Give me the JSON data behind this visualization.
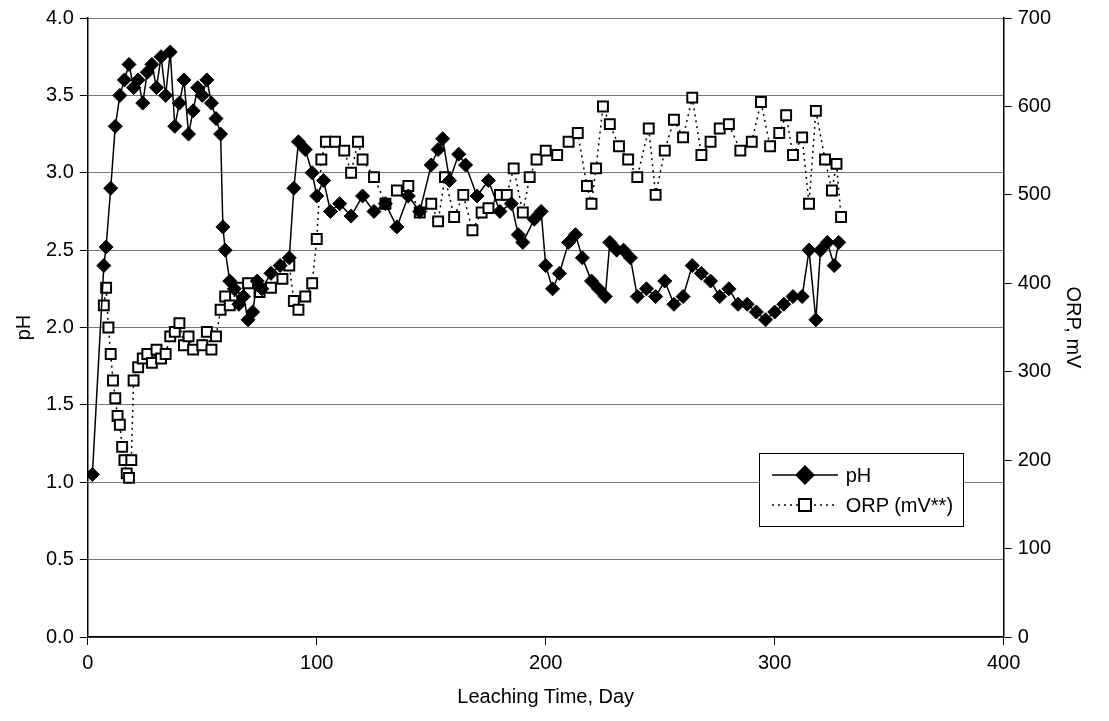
{
  "chart_data": {
    "type": "line",
    "xlabel": "Leaching Time, Day",
    "ylabel": "pH",
    "y2label": "ORP, mV",
    "xlim": [
      0,
      400
    ],
    "xticks": [
      0,
      100,
      200,
      300,
      400
    ],
    "ylim": [
      0,
      4
    ],
    "yticks": [
      {
        "value": 0,
        "label": "0.0"
      },
      {
        "value": 0.5,
        "label": "0.5"
      },
      {
        "value": 1,
        "label": "1.0"
      },
      {
        "value": 1.5,
        "label": "1.5"
      },
      {
        "value": 2,
        "label": "2.0"
      },
      {
        "value": 2.5,
        "label": "2.5"
      },
      {
        "value": 3,
        "label": "3.0"
      },
      {
        "value": 3.5,
        "label": "3.5"
      },
      {
        "value": 4,
        "label": "4.0"
      }
    ],
    "y2lim": [
      0,
      700
    ],
    "y2ticks": [
      0,
      100,
      200,
      300,
      400,
      500,
      600,
      700
    ],
    "grid": "y",
    "legend": "bottom right",
    "series": [
      {
        "name": "pH",
        "color": "#000000",
        "marker": "diamond",
        "line_style": "solid",
        "x": [
          2,
          7,
          8,
          10,
          12,
          14,
          16,
          18,
          20,
          22,
          24,
          26,
          28,
          30,
          32,
          34,
          36,
          38,
          40,
          42,
          44,
          46,
          48,
          50,
          52,
          54,
          56,
          58,
          59,
          60,
          62,
          64,
          66,
          68,
          70,
          72,
          74,
          76,
          80,
          84,
          88,
          90,
          92,
          95,
          98,
          100,
          103,
          106,
          110,
          115,
          120,
          125,
          130,
          135,
          140,
          145,
          150,
          153,
          155,
          158,
          162,
          165,
          170,
          175,
          180,
          185,
          188,
          190,
          195,
          198,
          200,
          203,
          206,
          210,
          213,
          216,
          220,
          223,
          226,
          228,
          231,
          234,
          237,
          240,
          244,
          248,
          252,
          256,
          260,
          264,
          268,
          272,
          276,
          280,
          284,
          288,
          292,
          296,
          300,
          304,
          308,
          312,
          315,
          318,
          320,
          323,
          326,
          328
        ],
        "values": [
          1.05,
          2.4,
          2.52,
          2.9,
          3.3,
          3.5,
          3.6,
          3.7,
          3.55,
          3.6,
          3.45,
          3.65,
          3.7,
          3.55,
          3.75,
          3.5,
          3.78,
          3.3,
          3.45,
          3.6,
          3.25,
          3.4,
          3.55,
          3.5,
          3.6,
          3.45,
          3.35,
          3.25,
          2.65,
          2.5,
          2.3,
          2.25,
          2.15,
          2.2,
          2.05,
          2.1,
          2.3,
          2.25,
          2.35,
          2.4,
          2.45,
          2.9,
          3.2,
          3.15,
          3.0,
          2.85,
          2.95,
          2.75,
          2.8,
          2.72,
          2.85,
          2.75,
          2.8,
          2.65,
          2.85,
          2.75,
          3.05,
          3.15,
          3.22,
          2.95,
          3.12,
          3.05,
          2.85,
          2.95,
          2.75,
          2.8,
          2.6,
          2.55,
          2.7,
          2.75,
          2.4,
          2.25,
          2.35,
          2.55,
          2.6,
          2.45,
          2.3,
          2.25,
          2.2,
          2.55,
          2.5,
          2.5,
          2.45,
          2.2,
          2.25,
          2.2,
          2.3,
          2.15,
          2.2,
          2.4,
          2.35,
          2.3,
          2.2,
          2.25,
          2.15,
          2.15,
          2.1,
          2.05,
          2.1,
          2.15,
          2.2,
          2.2,
          2.5,
          2.05,
          2.5,
          2.55,
          2.4,
          2.55
        ]
      },
      {
        "name": "ORP (mV**)",
        "color": "#000000",
        "marker": "square",
        "line_style": "dotted",
        "axis": "y2",
        "x": [
          7,
          8,
          9,
          10,
          11,
          12,
          13,
          14,
          15,
          16,
          17,
          18,
          19,
          20,
          22,
          24,
          26,
          28,
          30,
          32,
          34,
          36,
          38,
          40,
          42,
          44,
          46,
          50,
          52,
          54,
          56,
          58,
          60,
          62,
          66,
          70,
          75,
          80,
          85,
          88,
          90,
          92,
          95,
          98,
          100,
          102,
          104,
          108,
          112,
          115,
          118,
          120,
          125,
          130,
          135,
          140,
          145,
          150,
          153,
          156,
          160,
          164,
          168,
          172,
          175,
          180,
          183,
          186,
          190,
          193,
          196,
          200,
          205,
          210,
          214,
          218,
          220,
          222,
          225,
          228,
          232,
          236,
          240,
          245,
          248,
          252,
          256,
          260,
          264,
          268,
          272,
          276,
          280,
          285,
          290,
          294,
          298,
          302,
          305,
          308,
          312,
          315,
          318,
          322,
          325,
          327,
          329
        ],
        "values": [
          375,
          395,
          350,
          320,
          290,
          270,
          250,
          240,
          215,
          200,
          185,
          180,
          200,
          290,
          305,
          315,
          320,
          310,
          325,
          315,
          320,
          340,
          345,
          355,
          330,
          340,
          325,
          330,
          345,
          325,
          340,
          370,
          385,
          375,
          395,
          400,
          390,
          395,
          405,
          420,
          380,
          370,
          385,
          400,
          450,
          540,
          560,
          560,
          550,
          525,
          560,
          540,
          520,
          490,
          505,
          510,
          480,
          490,
          470,
          520,
          475,
          500,
          460,
          480,
          485,
          500,
          500,
          530,
          480,
          520,
          540,
          550,
          545,
          560,
          570,
          510,
          490,
          530,
          600,
          580,
          555,
          540,
          520,
          575,
          500,
          550,
          585,
          565,
          610,
          545,
          560,
          575,
          580,
          550,
          560,
          605,
          555,
          570,
          590,
          545,
          565,
          490,
          595,
          540,
          505,
          535,
          475
        ]
      }
    ]
  }
}
